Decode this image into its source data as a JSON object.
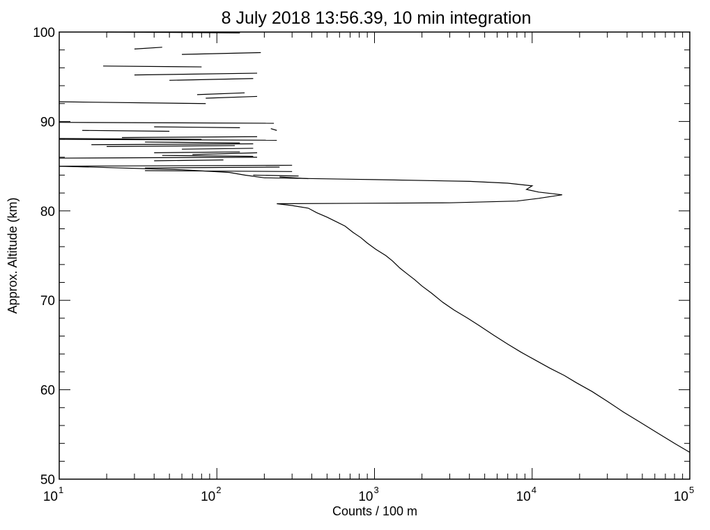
{
  "chart_data": {
    "type": "line",
    "title": "8 July 2018 13:56.39, 10 min integration",
    "xlabel": "Counts / 100 m",
    "ylabel": "Approx. Altitude (km)",
    "x_scale": "log",
    "xlim": [
      10,
      100000
    ],
    "ylim": [
      50,
      100
    ],
    "x_ticks": [
      {
        "base": "10",
        "exp": "1"
      },
      {
        "base": "10",
        "exp": "2"
      },
      {
        "base": "10",
        "exp": "3"
      },
      {
        "base": "10",
        "exp": "4"
      },
      {
        "base": "10",
        "exp": "5"
      }
    ],
    "y_ticks": [
      50,
      60,
      70,
      80,
      90,
      100
    ],
    "grid": false,
    "line_color": "#000000",
    "profile": [
      [
        100000,
        53.0
      ],
      [
        80000,
        54.0
      ],
      [
        62000,
        55.2
      ],
      [
        48000,
        56.4
      ],
      [
        38000,
        57.5
      ],
      [
        30000,
        58.7
      ],
      [
        24000,
        59.8
      ],
      [
        19000,
        60.8
      ],
      [
        16000,
        61.6
      ],
      [
        13000,
        62.4
      ],
      [
        10500,
        63.3
      ],
      [
        8500,
        64.2
      ],
      [
        7000,
        65.1
      ],
      [
        5700,
        66.1
      ],
      [
        4600,
        67.2
      ],
      [
        3900,
        68.0
      ],
      [
        3200,
        68.9
      ],
      [
        2700,
        69.8
      ],
      [
        2300,
        70.8
      ],
      [
        2000,
        71.6
      ],
      [
        1800,
        72.3
      ],
      [
        1600,
        73.0
      ],
      [
        1450,
        73.6
      ],
      [
        1300,
        74.4
      ],
      [
        1180,
        75.0
      ],
      [
        1020,
        75.7
      ],
      [
        900,
        76.4
      ],
      [
        820,
        77.0
      ],
      [
        730,
        77.6
      ],
      [
        650,
        78.3
      ],
      [
        570,
        78.8
      ],
      [
        500,
        79.3
      ],
      [
        430,
        79.8
      ],
      [
        380,
        80.3
      ],
      [
        300,
        80.6
      ],
      [
        240,
        80.8
      ],
      [
        3000,
        80.9
      ],
      [
        8000,
        81.1
      ],
      [
        11000,
        81.4
      ],
      [
        15500,
        81.8
      ],
      [
        11000,
        82.1
      ],
      [
        9200,
        82.4
      ],
      [
        10000,
        82.8
      ],
      [
        7000,
        83.1
      ],
      [
        4000,
        83.3
      ],
      [
        1000,
        83.5
      ],
      [
        200,
        83.7
      ],
      [
        150,
        84.0
      ],
      [
        120,
        84.3
      ],
      [
        60,
        84.6
      ],
      [
        10,
        85.0
      ]
    ],
    "upper_segments": [
      [
        [
          20,
          100
        ],
        [
          140,
          99.9
        ]
      ],
      [
        [
          30,
          98.1
        ],
        [
          45,
          98.3
        ]
      ],
      [
        [
          60,
          97.5
        ],
        [
          190,
          97.7
        ]
      ],
      [
        [
          19,
          96.2
        ],
        [
          80,
          96.1
        ]
      ],
      [
        [
          30,
          95.2
        ],
        [
          180,
          95.4
        ]
      ],
      [
        [
          50,
          94.6
        ],
        [
          170,
          94.8
        ]
      ],
      [
        [
          75,
          93.0
        ],
        [
          150,
          93.2
        ]
      ],
      [
        [
          85,
          92.6
        ],
        [
          180,
          92.8
        ]
      ],
      [
        [
          10,
          92.2
        ],
        [
          85,
          92.0
        ]
      ],
      [
        [
          10,
          89.9
        ],
        [
          230,
          89.8
        ]
      ],
      [
        [
          40,
          89.4
        ],
        [
          140,
          89.3
        ]
      ],
      [
        [
          220,
          89.2
        ],
        [
          240,
          89.0
        ]
      ],
      [
        [
          14,
          89.0
        ],
        [
          50,
          88.9
        ]
      ],
      [
        [
          10,
          88.1
        ],
        [
          80,
          88.0
        ]
      ],
      [
        [
          25,
          88.2
        ],
        [
          180,
          88.3
        ]
      ],
      [
        [
          10,
          88.0
        ],
        [
          240,
          87.9
        ]
      ],
      [
        [
          35,
          87.7
        ],
        [
          140,
          87.6
        ]
      ],
      [
        [
          16,
          87.4
        ],
        [
          170,
          87.5
        ]
      ],
      [
        [
          20,
          87.2
        ],
        [
          130,
          87.3
        ]
      ],
      [
        [
          60,
          86.9
        ],
        [
          170,
          87.0
        ]
      ],
      [
        [
          40,
          86.5
        ],
        [
          140,
          86.6
        ]
      ],
      [
        [
          70,
          86.3
        ],
        [
          180,
          86.5
        ]
      ],
      [
        [
          45,
          86.2
        ],
        [
          170,
          86.1
        ]
      ],
      [
        [
          10,
          85.9
        ],
        [
          180,
          86.0
        ]
      ],
      [
        [
          40,
          85.6
        ],
        [
          110,
          85.7
        ]
      ],
      [
        [
          10,
          85.0
        ],
        [
          300,
          85.1
        ]
      ],
      [
        [
          35,
          84.8
        ],
        [
          250,
          84.9
        ]
      ],
      [
        [
          35,
          84.5
        ],
        [
          300,
          84.4
        ]
      ],
      [
        [
          170,
          84.0
        ],
        [
          330,
          83.9
        ]
      ],
      [
        [
          250,
          83.8
        ],
        [
          380,
          83.6
        ]
      ]
    ]
  }
}
